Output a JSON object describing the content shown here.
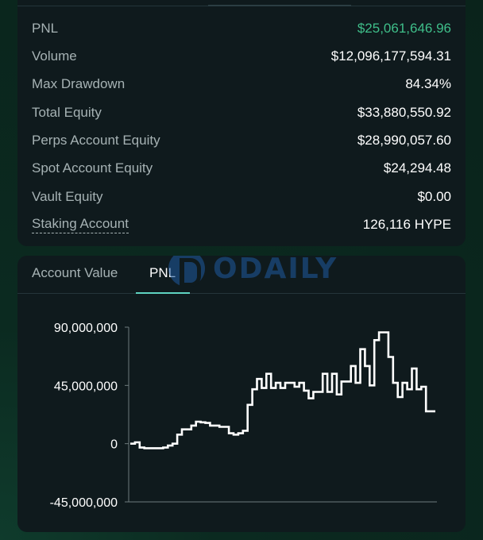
{
  "stats": [
    {
      "label": "PNL",
      "value": "$25,061,646.96",
      "positive": true
    },
    {
      "label": "Volume",
      "value": "$12,096,177,594.31"
    },
    {
      "label": "Max Drawdown",
      "value": "84.34%"
    },
    {
      "label": "Total Equity",
      "value": "$33,880,550.92"
    },
    {
      "label": "Perps Account Equity",
      "value": "$28,990,057.60"
    },
    {
      "label": "Spot Account Equity",
      "value": "$24,294.48"
    },
    {
      "label": "Vault Equity",
      "value": "$0.00"
    },
    {
      "label": "Staking Account",
      "value": "126,116 HYPE",
      "dotted": true
    }
  ],
  "tabs": {
    "account_value": "Account Value",
    "pnl": "PNL",
    "active": "pnl"
  },
  "watermark": "ODAILY",
  "colors": {
    "positive": "#3fbf8a",
    "accent": "#5fd3c1",
    "line": "#ffffff"
  },
  "chart_data": {
    "type": "line",
    "step": true,
    "title": "",
    "xlabel": "",
    "ylabel": "",
    "ylim": [
      -45000000,
      90000000
    ],
    "yticks": [
      {
        "value": 90000000,
        "label": "90,000,000"
      },
      {
        "value": 45000000,
        "label": "45,000,000"
      },
      {
        "value": 0,
        "label": "0"
      },
      {
        "value": -45000000,
        "label": "-45,000,000"
      }
    ],
    "grid": false,
    "values": [
      0,
      1000000,
      -3000000,
      -3500000,
      -3500000,
      -3500000,
      -3500000,
      -3000000,
      -1500000,
      0,
      7000000,
      11000000,
      11000000,
      14000000,
      17000000,
      16500000,
      16000000,
      14000000,
      14000000,
      13000000,
      13000000,
      8000000,
      7000000,
      8000000,
      10000000,
      30000000,
      42000000,
      50000000,
      43000000,
      54000000,
      43000000,
      47000000,
      43000000,
      47000000,
      47000000,
      44000000,
      47000000,
      41000000,
      35000000,
      40000000,
      40000000,
      54000000,
      40000000,
      54000000,
      38000000,
      48000000,
      48000000,
      60000000,
      47000000,
      73000000,
      60000000,
      45000000,
      80000000,
      86000000,
      86000000,
      67000000,
      47000000,
      36000000,
      47000000,
      42000000,
      58000000,
      42000000,
      44000000,
      25000000,
      25000000
    ]
  }
}
